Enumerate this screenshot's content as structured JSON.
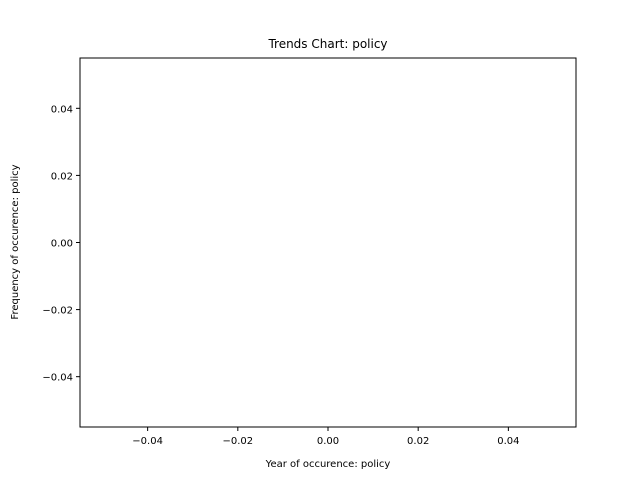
{
  "chart_data": {
    "type": "line",
    "title": "Trends Chart: policy",
    "xlabel": "Year of occurence: policy",
    "ylabel": "Frequency of occurence: policy",
    "xlim": [
      -0.055,
      0.055
    ],
    "ylim": [
      -0.055,
      0.055
    ],
    "x_ticks": [
      -0.04,
      -0.02,
      0.0,
      0.02,
      0.04
    ],
    "y_ticks": [
      -0.04,
      -0.02,
      0.0,
      0.02,
      0.04
    ],
    "x_tick_labels": [
      "−0.04",
      "−0.02",
      "0.00",
      "0.02",
      "0.04"
    ],
    "y_tick_labels": [
      "−0.04",
      "−0.02",
      "0.00",
      "0.02",
      "0.04"
    ],
    "grid": false,
    "series": [
      {
        "x": [],
        "y": []
      }
    ]
  }
}
